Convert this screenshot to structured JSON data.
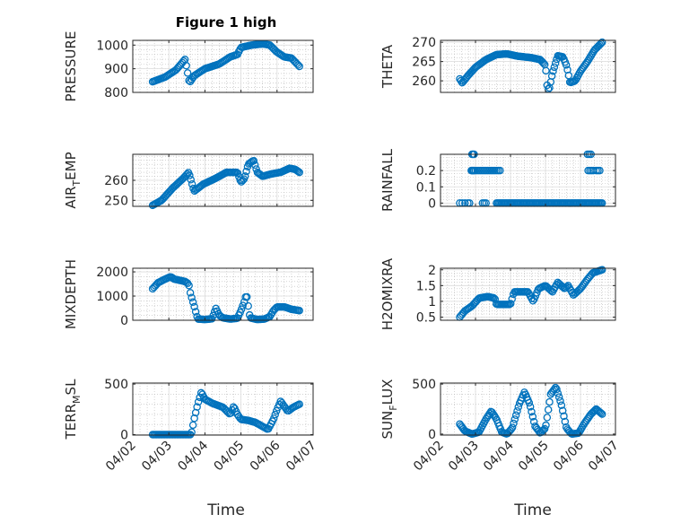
{
  "figure": {
    "title": "Figure 1 high"
  },
  "colors": {
    "marker": "#0072BD",
    "axis": "#262626",
    "grid": "#dcdcdc",
    "minor_grid": "#b9b9b9"
  },
  "chart_data": [
    {
      "type": "scatter",
      "ylabel": "PRESSURE",
      "ylim": [
        800,
        1020
      ],
      "yticks": [
        {
          "v": 800,
          "label": "800"
        },
        {
          "v": 900,
          "label": "900"
        },
        {
          "v": 1000,
          "label": "1000"
        }
      ],
      "xlim": [
        0,
        5
      ],
      "grid": true,
      "series": [
        {
          "x_start": 0.55,
          "x_end": 4.62,
          "knots": [
            [
              0.55,
              845
            ],
            [
              0.9,
              865
            ],
            [
              1.2,
              895
            ],
            [
              1.45,
              940
            ],
            [
              1.5,
              900
            ],
            [
              1.57,
              840
            ],
            [
              1.7,
              870
            ],
            [
              2.0,
              900
            ],
            [
              2.4,
              920
            ],
            [
              2.7,
              950
            ],
            [
              2.9,
              960
            ],
            [
              3.0,
              990
            ],
            [
              3.3,
              1000
            ],
            [
              3.6,
              1005
            ],
            [
              3.8,
              1000
            ],
            [
              4.0,
              970
            ],
            [
              4.2,
              950
            ],
            [
              4.4,
              945
            ],
            [
              4.62,
              910
            ]
          ],
          "count": 110
        }
      ]
    },
    {
      "type": "scatter",
      "ylabel": "THETA",
      "ylim": [
        257,
        270.5
      ],
      "yticks": [
        {
          "v": 260,
          "label": "260"
        },
        {
          "v": 265,
          "label": "265"
        },
        {
          "v": 270,
          "label": "270"
        }
      ],
      "xlim": [
        0,
        5
      ],
      "grid": true,
      "series": [
        {
          "x_start": 0.55,
          "x_end": 4.62,
          "knots": [
            [
              0.55,
              260.5
            ],
            [
              0.62,
              259.5
            ],
            [
              0.8,
              261.5
            ],
            [
              1.0,
              263.5
            ],
            [
              1.3,
              265.5
            ],
            [
              1.6,
              266.8
            ],
            [
              1.9,
              267.0
            ],
            [
              2.2,
              266.4
            ],
            [
              2.6,
              266
            ],
            [
              2.85,
              265.5
            ],
            [
              3.0,
              264
            ],
            [
              3.05,
              258.5
            ],
            [
              3.1,
              257.5
            ],
            [
              3.2,
              262
            ],
            [
              3.35,
              266.5
            ],
            [
              3.5,
              266.2
            ],
            [
              3.6,
              264
            ],
            [
              3.65,
              262
            ],
            [
              3.7,
              259.5
            ],
            [
              3.85,
              260
            ],
            [
              4.0,
              262.5
            ],
            [
              4.2,
              265
            ],
            [
              4.4,
              268
            ],
            [
              4.62,
              270
            ]
          ],
          "count": 120
        }
      ]
    },
    {
      "type": "scatter",
      "ylabel": "AIR",
      "ylabel_sub": "T",
      "ylabel_rest": "EMP",
      "ylim": [
        247,
        273
      ],
      "yticks": [
        {
          "v": 250,
          "label": "250"
        },
        {
          "v": 260,
          "label": "260"
        }
      ],
      "xlim": [
        0,
        5
      ],
      "grid": true,
      "series": [
        {
          "x_start": 0.55,
          "x_end": 4.62,
          "knots": [
            [
              0.55,
              247.5
            ],
            [
              0.8,
              250
            ],
            [
              1.1,
              256
            ],
            [
              1.4,
              261
            ],
            [
              1.55,
              264
            ],
            [
              1.6,
              261
            ],
            [
              1.7,
              254.5
            ],
            [
              1.95,
              258
            ],
            [
              2.3,
              261
            ],
            [
              2.6,
              264
            ],
            [
              2.9,
              264
            ],
            [
              3.0,
              259
            ],
            [
              3.1,
              261
            ],
            [
              3.2,
              268
            ],
            [
              3.35,
              270
            ],
            [
              3.45,
              264
            ],
            [
              3.6,
              262
            ],
            [
              3.8,
              263
            ],
            [
              4.1,
              264
            ],
            [
              4.35,
              266
            ],
            [
              4.5,
              265.5
            ],
            [
              4.62,
              264
            ]
          ],
          "count": 120
        }
      ]
    },
    {
      "type": "scatter",
      "ylabel": "RAINFALL",
      "ylim": [
        -0.02,
        0.3
      ],
      "yticks": [
        {
          "v": 0,
          "label": "0"
        },
        {
          "v": 0.1,
          "label": "0.1"
        },
        {
          "v": 0.2,
          "label": "0.2"
        }
      ],
      "xlim": [
        0,
        5
      ],
      "grid": true,
      "series": [
        {
          "points": [
            [
              0.55,
              0
            ],
            [
              0.62,
              0
            ],
            [
              0.7,
              0
            ],
            [
              0.78,
              0
            ],
            [
              0.83,
              0
            ],
            [
              0.88,
              0.2
            ],
            [
              0.9,
              0.2
            ],
            [
              0.92,
              0.2
            ],
            [
              0.94,
              0.2
            ],
            [
              0.96,
              0.2
            ],
            [
              0.9,
              0.3
            ],
            [
              0.93,
              0.3
            ],
            [
              0.96,
              0.3
            ],
            [
              1.0,
              0.2
            ],
            [
              1.05,
              0.2
            ],
            [
              1.1,
              0.2
            ],
            [
              1.15,
              0.2
            ],
            [
              1.2,
              0.2
            ],
            [
              1.25,
              0.2
            ],
            [
              1.3,
              0.2
            ],
            [
              1.35,
              0.2
            ],
            [
              1.4,
              0.2
            ],
            [
              1.45,
              0.2
            ],
            [
              1.5,
              0.2
            ],
            [
              1.55,
              0.2
            ],
            [
              1.6,
              0.2
            ],
            [
              1.65,
              0.2
            ],
            [
              1.7,
              0.2
            ],
            [
              1.2,
              0
            ],
            [
              1.25,
              0
            ],
            [
              1.3,
              0
            ]
          ]
        },
        {
          "x_start": 1.6,
          "x_end": 4.62,
          "constant": 0,
          "count": 85
        },
        {
          "points": [
            [
              4.2,
              0.3
            ],
            [
              4.25,
              0.3
            ],
            [
              4.3,
              0.3
            ],
            [
              4.22,
              0.2
            ],
            [
              4.27,
              0.2
            ],
            [
              4.32,
              0.2
            ],
            [
              4.37,
              0.2
            ],
            [
              4.45,
              0.2
            ],
            [
              4.5,
              0.2
            ],
            [
              4.55,
              0.2
            ]
          ]
        }
      ]
    },
    {
      "type": "scatter",
      "ylabel": "MIXDEPTH",
      "ylim": [
        0,
        2150
      ],
      "yticks": [
        {
          "v": 0,
          "label": "0"
        },
        {
          "v": 1000,
          "label": "1000"
        },
        {
          "v": 2000,
          "label": "2000"
        }
      ],
      "xlim": [
        0,
        5
      ],
      "grid": true,
      "series": [
        {
          "x_start": 0.55,
          "x_end": 4.62,
          "knots": [
            [
              0.55,
              1300
            ],
            [
              0.7,
              1550
            ],
            [
              0.9,
              1700
            ],
            [
              1.05,
              1800
            ],
            [
              1.15,
              1700
            ],
            [
              1.3,
              1650
            ],
            [
              1.45,
              1600
            ],
            [
              1.55,
              1500
            ],
            [
              1.6,
              1100
            ],
            [
              1.7,
              600
            ],
            [
              1.8,
              50
            ],
            [
              2.0,
              30
            ],
            [
              2.2,
              60
            ],
            [
              2.3,
              500
            ],
            [
              2.4,
              200
            ],
            [
              2.5,
              100
            ],
            [
              2.7,
              50
            ],
            [
              2.9,
              80
            ],
            [
              3.0,
              400
            ],
            [
              3.1,
              800
            ],
            [
              3.15,
              1100
            ],
            [
              3.25,
              100
            ],
            [
              3.45,
              30
            ],
            [
              3.65,
              50
            ],
            [
              3.8,
              150
            ],
            [
              3.9,
              400
            ],
            [
              4.0,
              550
            ],
            [
              4.2,
              550
            ],
            [
              4.4,
              450
            ],
            [
              4.62,
              400
            ]
          ],
          "count": 110
        }
      ]
    },
    {
      "type": "scatter",
      "ylabel": "H2OMIXRA",
      "ylim": [
        0.4,
        2.05
      ],
      "yticks": [
        {
          "v": 0.5,
          "label": "0.5"
        },
        {
          "v": 1,
          "label": "1"
        },
        {
          "v": 1.5,
          "label": "1.5"
        },
        {
          "v": 2,
          "label": "2"
        }
      ],
      "xlim": [
        0,
        5
      ],
      "grid": true,
      "series": [
        {
          "x_start": 0.55,
          "x_end": 4.62,
          "knots": [
            [
              0.55,
              0.5
            ],
            [
              0.7,
              0.7
            ],
            [
              0.9,
              0.85
            ],
            [
              1.1,
              1.1
            ],
            [
              1.35,
              1.15
            ],
            [
              1.55,
              1.1
            ],
            [
              1.6,
              0.9
            ],
            [
              1.75,
              0.9
            ],
            [
              2.0,
              0.9
            ],
            [
              2.1,
              1.3
            ],
            [
              2.3,
              1.3
            ],
            [
              2.5,
              1.3
            ],
            [
              2.65,
              1.0
            ],
            [
              2.8,
              1.4
            ],
            [
              3.0,
              1.5
            ],
            [
              3.2,
              1.3
            ],
            [
              3.35,
              1.6
            ],
            [
              3.55,
              1.4
            ],
            [
              3.65,
              1.5
            ],
            [
              3.8,
              1.2
            ],
            [
              4.0,
              1.4
            ],
            [
              4.2,
              1.7
            ],
            [
              4.35,
              1.9
            ],
            [
              4.62,
              2.0
            ]
          ],
          "count": 110
        }
      ]
    },
    {
      "type": "scatter",
      "ylabel": "TERR",
      "ylabel_sub": "M",
      "ylabel_rest": "SL",
      "ylim": [
        -5,
        510
      ],
      "yticks": [
        {
          "v": 0,
          "label": "0"
        },
        {
          "v": 500,
          "label": "500"
        }
      ],
      "xlim": [
        0,
        5
      ],
      "grid": true,
      "series": [
        {
          "x_start": 0.55,
          "x_end": 4.62,
          "knots": [
            [
              0.55,
              0
            ],
            [
              1.2,
              0
            ],
            [
              1.5,
              0
            ],
            [
              1.62,
              0
            ],
            [
              1.7,
              150
            ],
            [
              1.8,
              300
            ],
            [
              1.9,
              420
            ],
            [
              2.0,
              350
            ],
            [
              2.2,
              310
            ],
            [
              2.5,
              270
            ],
            [
              2.7,
              200
            ],
            [
              2.8,
              280
            ],
            [
              2.9,
              200
            ],
            [
              3.0,
              150
            ],
            [
              3.2,
              140
            ],
            [
              3.4,
              120
            ],
            [
              3.6,
              80
            ],
            [
              3.75,
              50
            ],
            [
              3.9,
              150
            ],
            [
              4.0,
              250
            ],
            [
              4.1,
              330
            ],
            [
              4.2,
              280
            ],
            [
              4.3,
              230
            ],
            [
              4.45,
              270
            ],
            [
              4.62,
              300
            ]
          ],
          "count": 110
        }
      ]
    },
    {
      "type": "scatter",
      "ylabel": "SUN",
      "ylabel_sub": "F",
      "ylabel_rest": "LUX",
      "ylim": [
        -10,
        510
      ],
      "yticks": [
        {
          "v": 0,
          "label": "0"
        },
        {
          "v": 500,
          "label": "500"
        }
      ],
      "xlim": [
        0,
        5
      ],
      "grid": true,
      "series": [
        {
          "x_start": 0.55,
          "x_end": 4.62,
          "knots": [
            [
              0.55,
              100
            ],
            [
              0.7,
              30
            ],
            [
              0.9,
              0
            ],
            [
              1.1,
              20
            ],
            [
              1.3,
              150
            ],
            [
              1.45,
              230
            ],
            [
              1.6,
              150
            ],
            [
              1.75,
              20
            ],
            [
              1.9,
              0
            ],
            [
              2.05,
              60
            ],
            [
              2.25,
              300
            ],
            [
              2.4,
              420
            ],
            [
              2.55,
              300
            ],
            [
              2.7,
              80
            ],
            [
              2.85,
              10
            ],
            [
              3.0,
              60
            ],
            [
              3.15,
              400
            ],
            [
              3.3,
              470
            ],
            [
              3.45,
              300
            ],
            [
              3.6,
              60
            ],
            [
              3.75,
              0
            ],
            [
              3.95,
              10
            ],
            [
              4.1,
              100
            ],
            [
              4.3,
              200
            ],
            [
              4.45,
              250
            ],
            [
              4.62,
              200
            ]
          ],
          "count": 120
        }
      ]
    }
  ],
  "x_axis": {
    "tick_labels": [
      "04/02",
      "04/03",
      "04/04",
      "04/05",
      "04/06",
      "04/07"
    ],
    "label_left": "Time",
    "label_right": "Time"
  }
}
